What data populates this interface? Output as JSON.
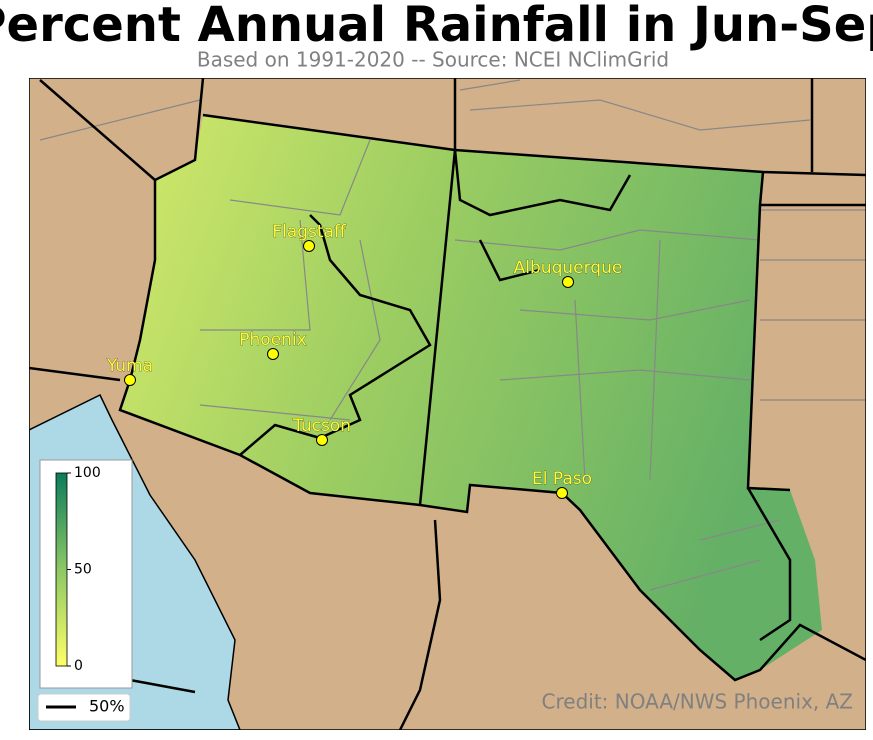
{
  "title": "Percent Annual Rainfall in Jun-Sep",
  "subtitle": "Based on 1991-2020 -- Source: NCEI NClimGrid",
  "cities": [
    {
      "name": "Flagstaff"
    },
    {
      "name": "Albuquerque"
    },
    {
      "name": "Phoenix"
    },
    {
      "name": "Yuma"
    },
    {
      "name": "Tucson"
    },
    {
      "name": "El Paso"
    }
  ],
  "colorbar": {
    "ylim": [
      0,
      100
    ],
    "yticks": [
      0,
      50,
      100
    ]
  },
  "legend": {
    "label": "50%"
  },
  "credit": "Credit: NOAA/NWS Phoenix, AZ"
}
